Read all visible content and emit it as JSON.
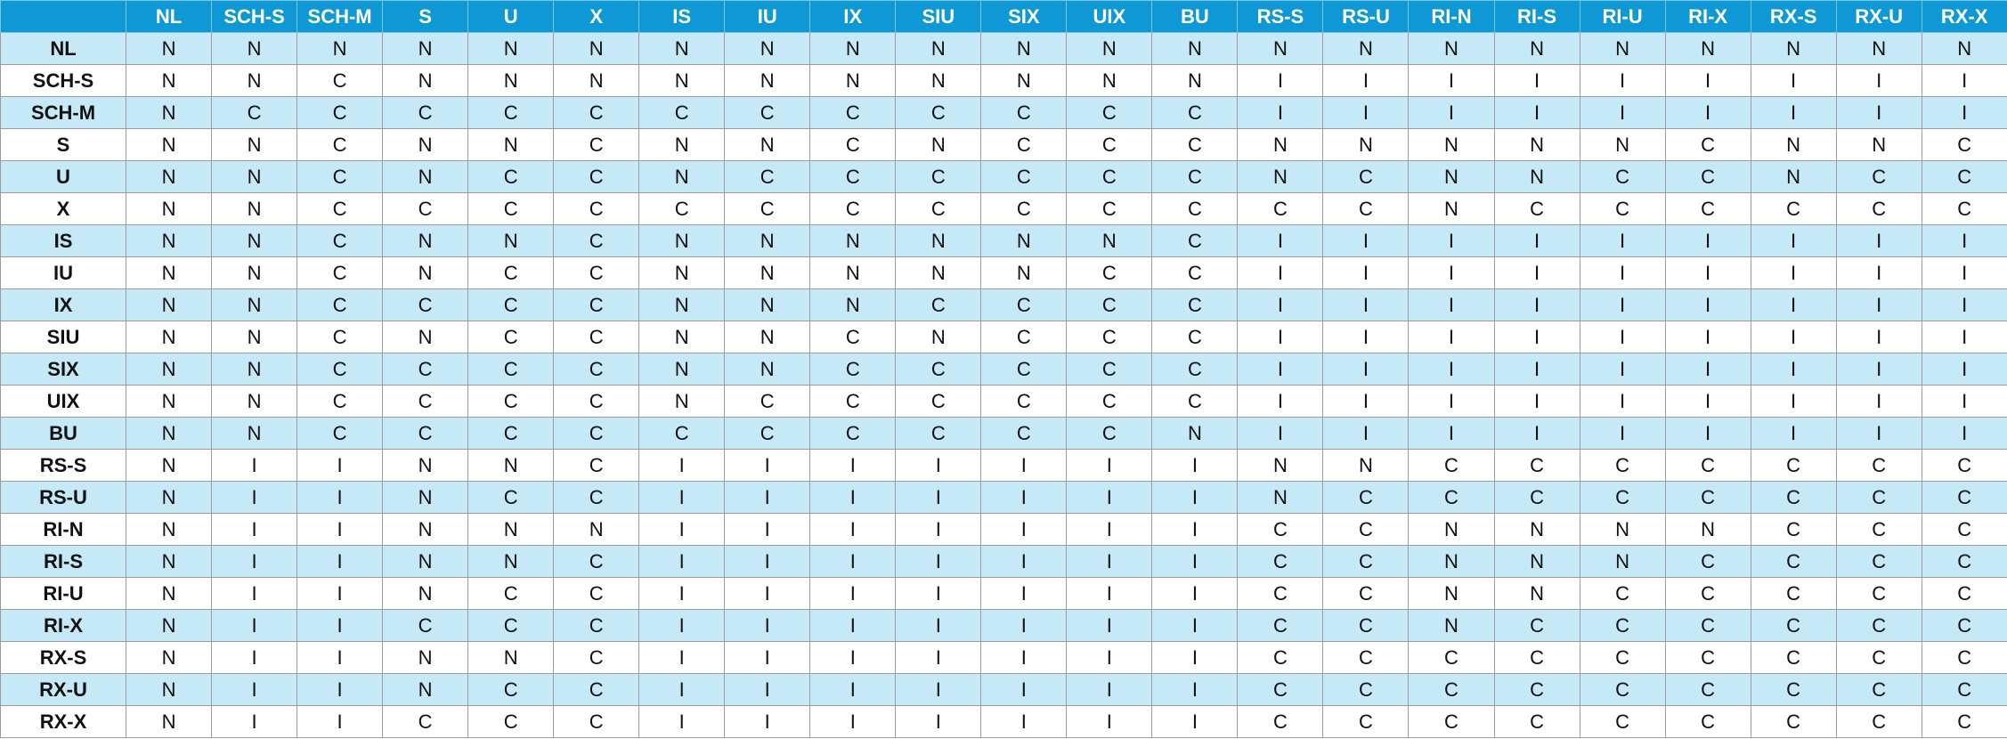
{
  "table": {
    "columns": [
      "NL",
      "SCH-S",
      "SCH-M",
      "S",
      "U",
      "X",
      "IS",
      "IU",
      "IX",
      "SIU",
      "SIX",
      "UIX",
      "BU",
      "RS-S",
      "RS-U",
      "RI-N",
      "RI-S",
      "RI-U",
      "RI-X",
      "RX-S",
      "RX-U",
      "RX-X"
    ],
    "rows": [
      {
        "label": "NL",
        "cells": [
          "N",
          "N",
          "N",
          "N",
          "N",
          "N",
          "N",
          "N",
          "N",
          "N",
          "N",
          "N",
          "N",
          "N",
          "N",
          "N",
          "N",
          "N",
          "N",
          "N",
          "N",
          "N"
        ]
      },
      {
        "label": "SCH-S",
        "cells": [
          "N",
          "N",
          "C",
          "N",
          "N",
          "N",
          "N",
          "N",
          "N",
          "N",
          "N",
          "N",
          "N",
          "I",
          "I",
          "I",
          "I",
          "I",
          "I",
          "I",
          "I",
          "I"
        ]
      },
      {
        "label": "SCH-M",
        "cells": [
          "N",
          "C",
          "C",
          "C",
          "C",
          "C",
          "C",
          "C",
          "C",
          "C",
          "C",
          "C",
          "C",
          "I",
          "I",
          "I",
          "I",
          "I",
          "I",
          "I",
          "I",
          "I"
        ]
      },
      {
        "label": "S",
        "cells": [
          "N",
          "N",
          "C",
          "N",
          "N",
          "C",
          "N",
          "N",
          "C",
          "N",
          "C",
          "C",
          "C",
          "N",
          "N",
          "N",
          "N",
          "N",
          "C",
          "N",
          "N",
          "C"
        ]
      },
      {
        "label": "U",
        "cells": [
          "N",
          "N",
          "C",
          "N",
          "C",
          "C",
          "N",
          "C",
          "C",
          "C",
          "C",
          "C",
          "C",
          "N",
          "C",
          "N",
          "N",
          "C",
          "C",
          "N",
          "C",
          "C"
        ]
      },
      {
        "label": "X",
        "cells": [
          "N",
          "N",
          "C",
          "C",
          "C",
          "C",
          "C",
          "C",
          "C",
          "C",
          "C",
          "C",
          "C",
          "C",
          "C",
          "N",
          "C",
          "C",
          "C",
          "C",
          "C",
          "C"
        ]
      },
      {
        "label": "IS",
        "cells": [
          "N",
          "N",
          "C",
          "N",
          "N",
          "C",
          "N",
          "N",
          "N",
          "N",
          "N",
          "N",
          "C",
          "I",
          "I",
          "I",
          "I",
          "I",
          "I",
          "I",
          "I",
          "I"
        ]
      },
      {
        "label": "IU",
        "cells": [
          "N",
          "N",
          "C",
          "N",
          "C",
          "C",
          "N",
          "N",
          "N",
          "N",
          "N",
          "C",
          "C",
          "I",
          "I",
          "I",
          "I",
          "I",
          "I",
          "I",
          "I",
          "I"
        ]
      },
      {
        "label": "IX",
        "cells": [
          "N",
          "N",
          "C",
          "C",
          "C",
          "C",
          "N",
          "N",
          "N",
          "C",
          "C",
          "C",
          "C",
          "I",
          "I",
          "I",
          "I",
          "I",
          "I",
          "I",
          "I",
          "I"
        ]
      },
      {
        "label": "SIU",
        "cells": [
          "N",
          "N",
          "C",
          "N",
          "C",
          "C",
          "N",
          "N",
          "C",
          "N",
          "C",
          "C",
          "C",
          "I",
          "I",
          "I",
          "I",
          "I",
          "I",
          "I",
          "I",
          "I"
        ]
      },
      {
        "label": "SIX",
        "cells": [
          "N",
          "N",
          "C",
          "C",
          "C",
          "C",
          "N",
          "N",
          "C",
          "C",
          "C",
          "C",
          "C",
          "I",
          "I",
          "I",
          "I",
          "I",
          "I",
          "I",
          "I",
          "I"
        ]
      },
      {
        "label": "UIX",
        "cells": [
          "N",
          "N",
          "C",
          "C",
          "C",
          "C",
          "N",
          "C",
          "C",
          "C",
          "C",
          "C",
          "C",
          "I",
          "I",
          "I",
          "I",
          "I",
          "I",
          "I",
          "I",
          "I"
        ]
      },
      {
        "label": "BU",
        "cells": [
          "N",
          "N",
          "C",
          "C",
          "C",
          "C",
          "C",
          "C",
          "C",
          "C",
          "C",
          "C",
          "N",
          "I",
          "I",
          "I",
          "I",
          "I",
          "I",
          "I",
          "I",
          "I"
        ]
      },
      {
        "label": "RS-S",
        "cells": [
          "N",
          "I",
          "I",
          "N",
          "N",
          "C",
          "I",
          "I",
          "I",
          "I",
          "I",
          "I",
          "I",
          "N",
          "N",
          "C",
          "C",
          "C",
          "C",
          "C",
          "C",
          "C"
        ]
      },
      {
        "label": "RS-U",
        "cells": [
          "N",
          "I",
          "I",
          "N",
          "C",
          "C",
          "I",
          "I",
          "I",
          "I",
          "I",
          "I",
          "I",
          "N",
          "C",
          "C",
          "C",
          "C",
          "C",
          "C",
          "C",
          "C"
        ]
      },
      {
        "label": "RI-N",
        "cells": [
          "N",
          "I",
          "I",
          "N",
          "N",
          "N",
          "I",
          "I",
          "I",
          "I",
          "I",
          "I",
          "I",
          "C",
          "C",
          "N",
          "N",
          "N",
          "N",
          "C",
          "C",
          "C"
        ]
      },
      {
        "label": "RI-S",
        "cells": [
          "N",
          "I",
          "I",
          "N",
          "N",
          "C",
          "I",
          "I",
          "I",
          "I",
          "I",
          "I",
          "I",
          "C",
          "C",
          "N",
          "N",
          "N",
          "C",
          "C",
          "C",
          "C"
        ]
      },
      {
        "label": "RI-U",
        "cells": [
          "N",
          "I",
          "I",
          "N",
          "C",
          "C",
          "I",
          "I",
          "I",
          "I",
          "I",
          "I",
          "I",
          "C",
          "C",
          "N",
          "N",
          "C",
          "C",
          "C",
          "C",
          "C"
        ]
      },
      {
        "label": "RI-X",
        "cells": [
          "N",
          "I",
          "I",
          "C",
          "C",
          "C",
          "I",
          "I",
          "I",
          "I",
          "I",
          "I",
          "I",
          "C",
          "C",
          "N",
          "C",
          "C",
          "C",
          "C",
          "C",
          "C"
        ]
      },
      {
        "label": "RX-S",
        "cells": [
          "N",
          "I",
          "I",
          "N",
          "N",
          "C",
          "I",
          "I",
          "I",
          "I",
          "I",
          "I",
          "I",
          "C",
          "C",
          "C",
          "C",
          "C",
          "C",
          "C",
          "C",
          "C"
        ]
      },
      {
        "label": "RX-U",
        "cells": [
          "N",
          "I",
          "I",
          "N",
          "C",
          "C",
          "I",
          "I",
          "I",
          "I",
          "I",
          "I",
          "I",
          "C",
          "C",
          "C",
          "C",
          "C",
          "C",
          "C",
          "C",
          "C"
        ]
      },
      {
        "label": "RX-X",
        "cells": [
          "N",
          "I",
          "I",
          "C",
          "C",
          "C",
          "I",
          "I",
          "I",
          "I",
          "I",
          "I",
          "I",
          "C",
          "C",
          "C",
          "C",
          "C",
          "C",
          "C",
          "C",
          "C"
        ]
      }
    ]
  }
}
